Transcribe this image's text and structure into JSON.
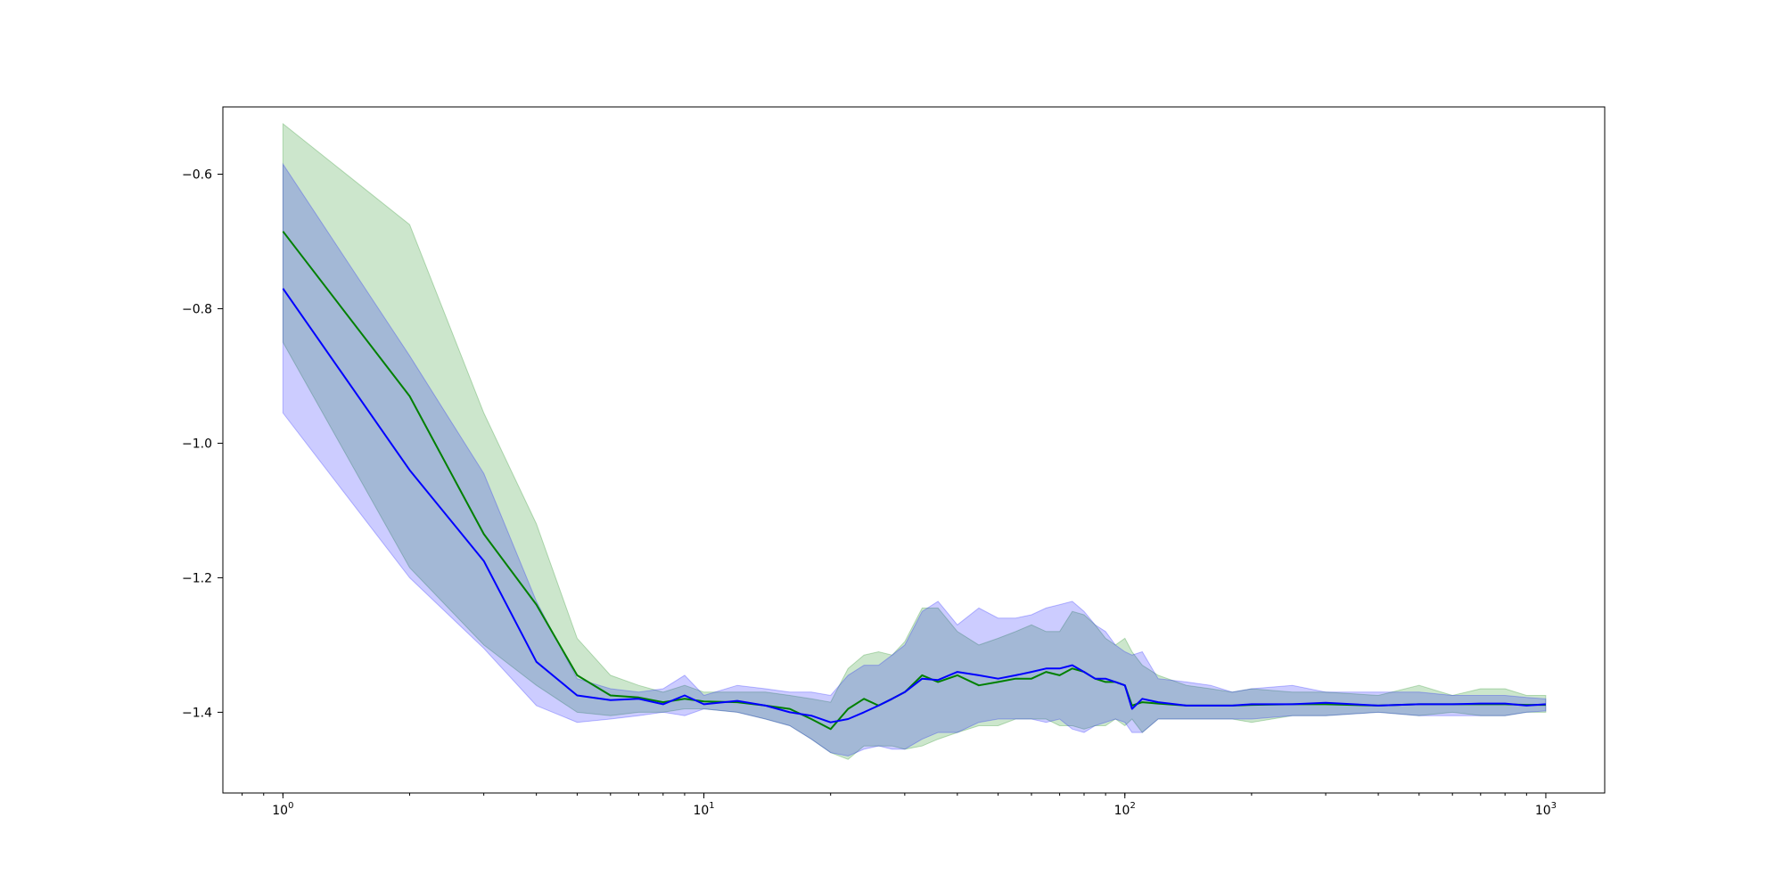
{
  "chart_data": {
    "type": "line",
    "title": "",
    "xlabel": "",
    "ylabel": "",
    "x_scale": "log",
    "xlim": [
      0.72,
      1380
    ],
    "ylim": [
      -1.52,
      -0.5
    ],
    "grid": false,
    "legend": "none",
    "x_ticks": [
      {
        "value": 1,
        "base": "10",
        "exp": "0"
      },
      {
        "value": 10,
        "base": "10",
        "exp": "1"
      },
      {
        "value": 100,
        "base": "10",
        "exp": "2"
      },
      {
        "value": 1000,
        "base": "10",
        "exp": "3"
      }
    ],
    "y_ticks": [
      {
        "value": -0.6,
        "label": "−0.6"
      },
      {
        "value": -0.8,
        "label": "−0.8"
      },
      {
        "value": -1.0,
        "label": "−1.0"
      },
      {
        "value": -1.2,
        "label": "−1.2"
      },
      {
        "value": -1.4,
        "label": "−1.4"
      }
    ],
    "series": [
      {
        "color": "#008000",
        "band_color": "#008000",
        "band_opacity": 0.2,
        "x": [
          1,
          2,
          3,
          4,
          5,
          6,
          7,
          8,
          9,
          10,
          12,
          14,
          16,
          18,
          20,
          22,
          24,
          26,
          28,
          30,
          33,
          36,
          40,
          45,
          50,
          55,
          60,
          65,
          70,
          75,
          80,
          85,
          90,
          95,
          100,
          104,
          110,
          120,
          140,
          160,
          180,
          200,
          250,
          300,
          400,
          500,
          600,
          700,
          800,
          900,
          1000
        ],
        "y": [
          -0.685,
          -0.93,
          -1.135,
          -1.24,
          -1.345,
          -1.375,
          -1.378,
          -1.385,
          -1.38,
          -1.384,
          -1.385,
          -1.39,
          -1.395,
          -1.41,
          -1.425,
          -1.395,
          -1.38,
          -1.39,
          -1.38,
          -1.37,
          -1.345,
          -1.355,
          -1.345,
          -1.36,
          -1.355,
          -1.35,
          -1.35,
          -1.34,
          -1.345,
          -1.335,
          -1.34,
          -1.35,
          -1.355,
          -1.355,
          -1.36,
          -1.39,
          -1.385,
          -1.387,
          -1.39,
          -1.39,
          -1.39,
          -1.389,
          -1.388,
          -1.388,
          -1.39,
          -1.388,
          -1.388,
          -1.388,
          -1.388,
          -1.389,
          -1.389
        ],
        "upper": [
          -0.525,
          -0.675,
          -0.955,
          -1.12,
          -1.29,
          -1.345,
          -1.36,
          -1.37,
          -1.36,
          -1.37,
          -1.37,
          -1.37,
          -1.375,
          -1.38,
          -1.385,
          -1.335,
          -1.315,
          -1.31,
          -1.315,
          -1.295,
          -1.245,
          -1.245,
          -1.28,
          -1.3,
          -1.29,
          -1.28,
          -1.27,
          -1.28,
          -1.28,
          -1.25,
          -1.255,
          -1.27,
          -1.29,
          -1.3,
          -1.29,
          -1.31,
          -1.33,
          -1.345,
          -1.36,
          -1.365,
          -1.37,
          -1.365,
          -1.37,
          -1.37,
          -1.375,
          -1.36,
          -1.375,
          -1.365,
          -1.365,
          -1.375,
          -1.375
        ],
        "lower": [
          -0.85,
          -1.185,
          -1.3,
          -1.36,
          -1.4,
          -1.405,
          -1.4,
          -1.4,
          -1.395,
          -1.395,
          -1.4,
          -1.41,
          -1.42,
          -1.44,
          -1.46,
          -1.47,
          -1.45,
          -1.45,
          -1.45,
          -1.455,
          -1.45,
          -1.44,
          -1.43,
          -1.42,
          -1.42,
          -1.41,
          -1.41,
          -1.41,
          -1.42,
          -1.42,
          -1.425,
          -1.42,
          -1.42,
          -1.41,
          -1.42,
          -1.41,
          -1.43,
          -1.41,
          -1.41,
          -1.41,
          -1.41,
          -1.415,
          -1.405,
          -1.405,
          -1.4,
          -1.405,
          -1.4,
          -1.405,
          -1.405,
          -1.4,
          -1.4
        ]
      },
      {
        "color": "#0000ff",
        "band_color": "#0000ff",
        "band_opacity": 0.2,
        "x": [
          1,
          2,
          3,
          4,
          5,
          6,
          7,
          8,
          9,
          10,
          12,
          14,
          16,
          18,
          20,
          22,
          24,
          26,
          28,
          30,
          33,
          36,
          40,
          45,
          50,
          55,
          60,
          65,
          70,
          75,
          80,
          85,
          90,
          95,
          100,
          104,
          110,
          120,
          140,
          160,
          180,
          200,
          250,
          300,
          400,
          500,
          600,
          700,
          800,
          900,
          1000
        ],
        "y": [
          -0.77,
          -1.04,
          -1.175,
          -1.325,
          -1.375,
          -1.382,
          -1.38,
          -1.388,
          -1.375,
          -1.388,
          -1.383,
          -1.39,
          -1.4,
          -1.405,
          -1.415,
          -1.41,
          -1.4,
          -1.39,
          -1.38,
          -1.37,
          -1.35,
          -1.352,
          -1.34,
          -1.345,
          -1.35,
          -1.345,
          -1.34,
          -1.335,
          -1.335,
          -1.33,
          -1.34,
          -1.35,
          -1.35,
          -1.355,
          -1.36,
          -1.395,
          -1.38,
          -1.385,
          -1.39,
          -1.39,
          -1.39,
          -1.388,
          -1.388,
          -1.386,
          -1.39,
          -1.388,
          -1.388,
          -1.387,
          -1.387,
          -1.39,
          -1.388
        ],
        "upper": [
          -0.585,
          -0.87,
          -1.045,
          -1.235,
          -1.35,
          -1.365,
          -1.37,
          -1.365,
          -1.345,
          -1.375,
          -1.36,
          -1.365,
          -1.37,
          -1.37,
          -1.375,
          -1.345,
          -1.33,
          -1.33,
          -1.315,
          -1.3,
          -1.25,
          -1.235,
          -1.27,
          -1.245,
          -1.26,
          -1.26,
          -1.255,
          -1.245,
          -1.24,
          -1.235,
          -1.25,
          -1.27,
          -1.28,
          -1.3,
          -1.31,
          -1.315,
          -1.31,
          -1.35,
          -1.355,
          -1.36,
          -1.37,
          -1.365,
          -1.36,
          -1.37,
          -1.37,
          -1.37,
          -1.375,
          -1.375,
          -1.375,
          -1.378,
          -1.38
        ],
        "lower": [
          -0.955,
          -1.2,
          -1.305,
          -1.39,
          -1.415,
          -1.41,
          -1.405,
          -1.4,
          -1.405,
          -1.395,
          -1.4,
          -1.41,
          -1.42,
          -1.44,
          -1.46,
          -1.465,
          -1.455,
          -1.45,
          -1.455,
          -1.455,
          -1.44,
          -1.43,
          -1.43,
          -1.415,
          -1.41,
          -1.41,
          -1.41,
          -1.415,
          -1.41,
          -1.425,
          -1.43,
          -1.42,
          -1.415,
          -1.41,
          -1.415,
          -1.43,
          -1.43,
          -1.41,
          -1.41,
          -1.41,
          -1.41,
          -1.41,
          -1.405,
          -1.405,
          -1.4,
          -1.405,
          -1.405,
          -1.405,
          -1.405,
          -1.4,
          -1.398
        ]
      }
    ]
  }
}
